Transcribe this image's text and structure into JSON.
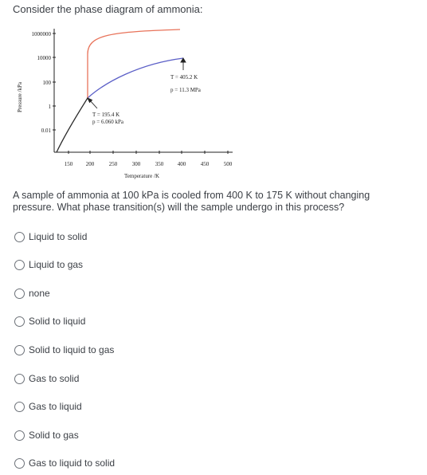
{
  "prompt": "Consider the phase diagram of ammonia:",
  "diagram": {
    "ylabel": "Pressure /kPa",
    "xlabel": "Temperature /K",
    "y_ticks": [
      "1000000",
      "10000",
      "100",
      "1",
      "0.01"
    ],
    "x_ticks": [
      "150",
      "200",
      "250",
      "300",
      "350",
      "400",
      "450",
      "500"
    ],
    "triple_point_T": "T = 195.4 K",
    "triple_point_p": "p = 6.060 kPa",
    "critical_point_T": "T = 405.2 K",
    "critical_point_p": "p = 11.3 MPa",
    "colors": {
      "fusion": "#e8735a",
      "vaporization": "#5b5fc7",
      "sublimation": "#2a2a2a"
    }
  },
  "question": "A sample of ammonia at 100 kPa is cooled from 400 K to 175 K without changing pressure. What phase transition(s) will the sample undergo in this process?",
  "options": [
    {
      "label": "Liquid to solid"
    },
    {
      "label": "Liquid to gas"
    },
    {
      "label": "none"
    },
    {
      "label": "Solid to liquid"
    },
    {
      "label": "Solid to liquid to gas"
    },
    {
      "label": "Gas to solid"
    },
    {
      "label": "Gas to liquid"
    },
    {
      "label": "Solid to gas"
    },
    {
      "label": "Gas to liquid to solid"
    }
  ]
}
